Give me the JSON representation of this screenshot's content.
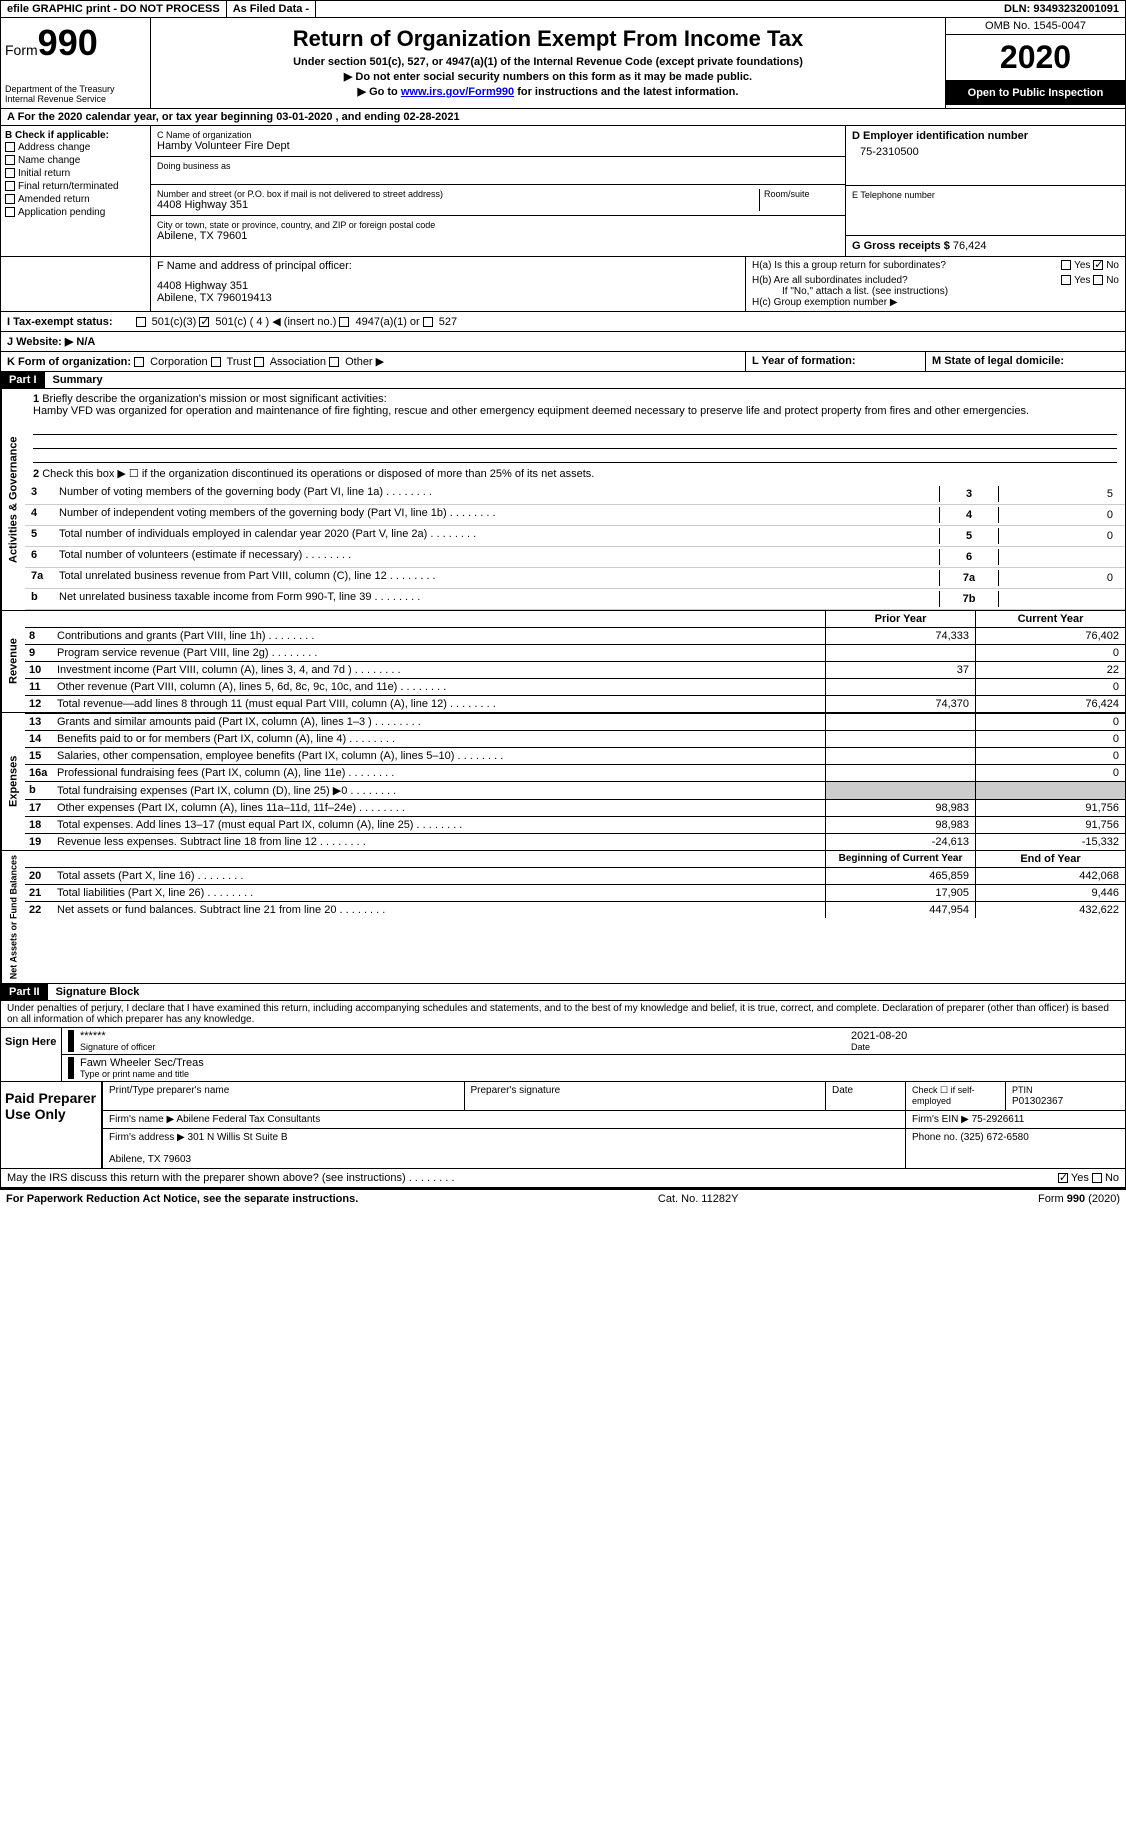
{
  "topbar": {
    "efile": "efile GRAPHIC print - DO NOT PROCESS",
    "asfiled": "As Filed Data -",
    "dln": "DLN: 93493232001091"
  },
  "header": {
    "form_label": "Form",
    "form_num": "990",
    "dept": "Department of the Treasury\nInternal Revenue Service",
    "title": "Return of Organization Exempt From Income Tax",
    "subtitle1": "Under section 501(c), 527, or 4947(a)(1) of the Internal Revenue Code (except private foundations)",
    "subtitle2": "▶ Do not enter social security numbers on this form as it may be made public.",
    "subtitle3": "▶ Go to www.irs.gov/Form990 for instructions and the latest information.",
    "omb": "OMB No. 1545-0047",
    "year": "2020",
    "inspect": "Open to Public Inspection"
  },
  "row_a": "A   For the 2020 calendar year, or tax year beginning 03-01-2020   , and ending 02-28-2021",
  "section_b": {
    "label": "B Check if applicable:",
    "items": [
      "Address change",
      "Name change",
      "Initial return",
      "Final return/terminated",
      "Amended return",
      "Application pending"
    ]
  },
  "section_c": {
    "name_label": "C Name of organization",
    "name": "Hamby Volunteer Fire Dept",
    "dba_label": "Doing business as",
    "addr_label": "Number and street (or P.O. box if mail is not delivered to street address)",
    "room_label": "Room/suite",
    "addr": "4408 Highway 351",
    "city_label": "City or town, state or province, country, and ZIP or foreign postal code",
    "city": "Abilene, TX  79601"
  },
  "section_d": {
    "label": "D Employer identification number",
    "ein": "75-2310500",
    "phone_label": "E Telephone number",
    "receipts_label": "G Gross receipts $",
    "receipts": "76,424"
  },
  "section_f": {
    "label": "F  Name and address of principal officer:",
    "addr1": "4408 Highway 351",
    "addr2": "Abilene, TX 796019413"
  },
  "section_h": {
    "ha": "H(a) Is this a group return for subordinates?",
    "hb": "H(b) Are all subordinates included?",
    "hb_note": "If \"No,\" attach a list. (see instructions)",
    "hc": "H(c) Group exemption number ▶"
  },
  "row_i": "I   Tax-exempt status:",
  "row_j": "J   Website: ▶   N/A",
  "row_k": "K Form of organization:",
  "row_l": "L Year of formation:",
  "row_m": "M State of legal domicile:",
  "part1": {
    "header": "Part I",
    "title": "Summary",
    "line1": "Briefly describe the organization's mission or most significant activities:",
    "mission": "Hamby VFD was organized for operation and maintenance of fire fighting, rescue and other emergency equipment deemed necessary to preserve life and protect property from fires and other emergencies.",
    "line2": "Check this box ▶ ☐ if the organization discontinued its operations or disposed of more than 25% of its net assets.",
    "vlabel1": "Activities & Governance",
    "vlabel2": "Revenue",
    "vlabel3": "Expenses",
    "vlabel4": "Net Assets or Fund Balances",
    "gov_lines": [
      {
        "n": "3",
        "t": "Number of voting members of the governing body (Part VI, line 1a)",
        "box": "3",
        "v": "5"
      },
      {
        "n": "4",
        "t": "Number of independent voting members of the governing body (Part VI, line 1b)",
        "box": "4",
        "v": "0"
      },
      {
        "n": "5",
        "t": "Total number of individuals employed in calendar year 2020 (Part V, line 2a)",
        "box": "5",
        "v": "0"
      },
      {
        "n": "6",
        "t": "Total number of volunteers (estimate if necessary)",
        "box": "6",
        "v": ""
      },
      {
        "n": "7a",
        "t": "Total unrelated business revenue from Part VIII, column (C), line 12",
        "box": "7a",
        "v": "0"
      },
      {
        "n": "b",
        "t": "Net unrelated business taxable income from Form 990-T, line 39",
        "box": "7b",
        "v": ""
      }
    ],
    "col_headers": {
      "prior": "Prior Year",
      "current": "Current Year"
    },
    "rev_lines": [
      {
        "n": "8",
        "t": "Contributions and grants (Part VIII, line 1h)",
        "p": "74,333",
        "c": "76,402"
      },
      {
        "n": "9",
        "t": "Program service revenue (Part VIII, line 2g)",
        "p": "",
        "c": "0"
      },
      {
        "n": "10",
        "t": "Investment income (Part VIII, column (A), lines 3, 4, and 7d )",
        "p": "37",
        "c": "22"
      },
      {
        "n": "11",
        "t": "Other revenue (Part VIII, column (A), lines 5, 6d, 8c, 9c, 10c, and 11e)",
        "p": "",
        "c": "0"
      },
      {
        "n": "12",
        "t": "Total revenue—add lines 8 through 11 (must equal Part VIII, column (A), line 12)",
        "p": "74,370",
        "c": "76,424"
      }
    ],
    "exp_lines": [
      {
        "n": "13",
        "t": "Grants and similar amounts paid (Part IX, column (A), lines 1–3 )",
        "p": "",
        "c": "0"
      },
      {
        "n": "14",
        "t": "Benefits paid to or for members (Part IX, column (A), line 4)",
        "p": "",
        "c": "0"
      },
      {
        "n": "15",
        "t": "Salaries, other compensation, employee benefits (Part IX, column (A), lines 5–10)",
        "p": "",
        "c": "0"
      },
      {
        "n": "16a",
        "t": "Professional fundraising fees (Part IX, column (A), line 11e)",
        "p": "",
        "c": "0"
      },
      {
        "n": "b",
        "t": "Total fundraising expenses (Part IX, column (D), line 25) ▶0",
        "p": "—",
        "c": "—"
      },
      {
        "n": "17",
        "t": "Other expenses (Part IX, column (A), lines 11a–11d, 11f–24e)",
        "p": "98,983",
        "c": "91,756"
      },
      {
        "n": "18",
        "t": "Total expenses. Add lines 13–17 (must equal Part IX, column (A), line 25)",
        "p": "98,983",
        "c": "91,756"
      },
      {
        "n": "19",
        "t": "Revenue less expenses. Subtract line 18 from line 12",
        "p": "-24,613",
        "c": "-15,332"
      }
    ],
    "net_headers": {
      "begin": "Beginning of Current Year",
      "end": "End of Year"
    },
    "net_lines": [
      {
        "n": "20",
        "t": "Total assets (Part X, line 16)",
        "p": "465,859",
        "c": "442,068"
      },
      {
        "n": "21",
        "t": "Total liabilities (Part X, line 26)",
        "p": "17,905",
        "c": "9,446"
      },
      {
        "n": "22",
        "t": "Net assets or fund balances. Subtract line 21 from line 20",
        "p": "447,954",
        "c": "432,622"
      }
    ]
  },
  "part2": {
    "header": "Part II",
    "title": "Signature Block",
    "declaration": "Under penalties of perjury, I declare that I have examined this return, including accompanying schedules and statements, and to the best of my knowledge and belief, it is true, correct, and complete. Declaration of preparer (other than officer) is based on all information of which preparer has any knowledge.",
    "sign_here": "Sign Here",
    "sig_stars": "******",
    "sig_officer": "Signature of officer",
    "sig_date": "2021-08-20",
    "date_label": "Date",
    "officer_name": "Fawn Wheeler Sec/Treas",
    "officer_type": "Type or print name and title",
    "paid": "Paid Preparer Use Only",
    "prep_name_label": "Print/Type preparer's name",
    "prep_sig_label": "Preparer's signature",
    "prep_date_label": "Date",
    "prep_check": "Check ☐ if self-employed",
    "ptin_label": "PTIN",
    "ptin": "P01302367",
    "firm_name_label": "Firm's name   ▶",
    "firm_name": "Abilene Federal Tax Consultants",
    "firm_ein_label": "Firm's EIN ▶",
    "firm_ein": "75-2926611",
    "firm_addr_label": "Firm's address ▶",
    "firm_addr": "301 N Willis St Suite B\n\nAbilene, TX  79603",
    "firm_phone_label": "Phone no.",
    "firm_phone": "(325) 672-6580",
    "discuss": "May the IRS discuss this return with the preparer shown above? (see instructions)"
  },
  "footer": {
    "left": "For Paperwork Reduction Act Notice, see the separate instructions.",
    "center": "Cat. No. 11282Y",
    "right": "Form 990 (2020)"
  }
}
